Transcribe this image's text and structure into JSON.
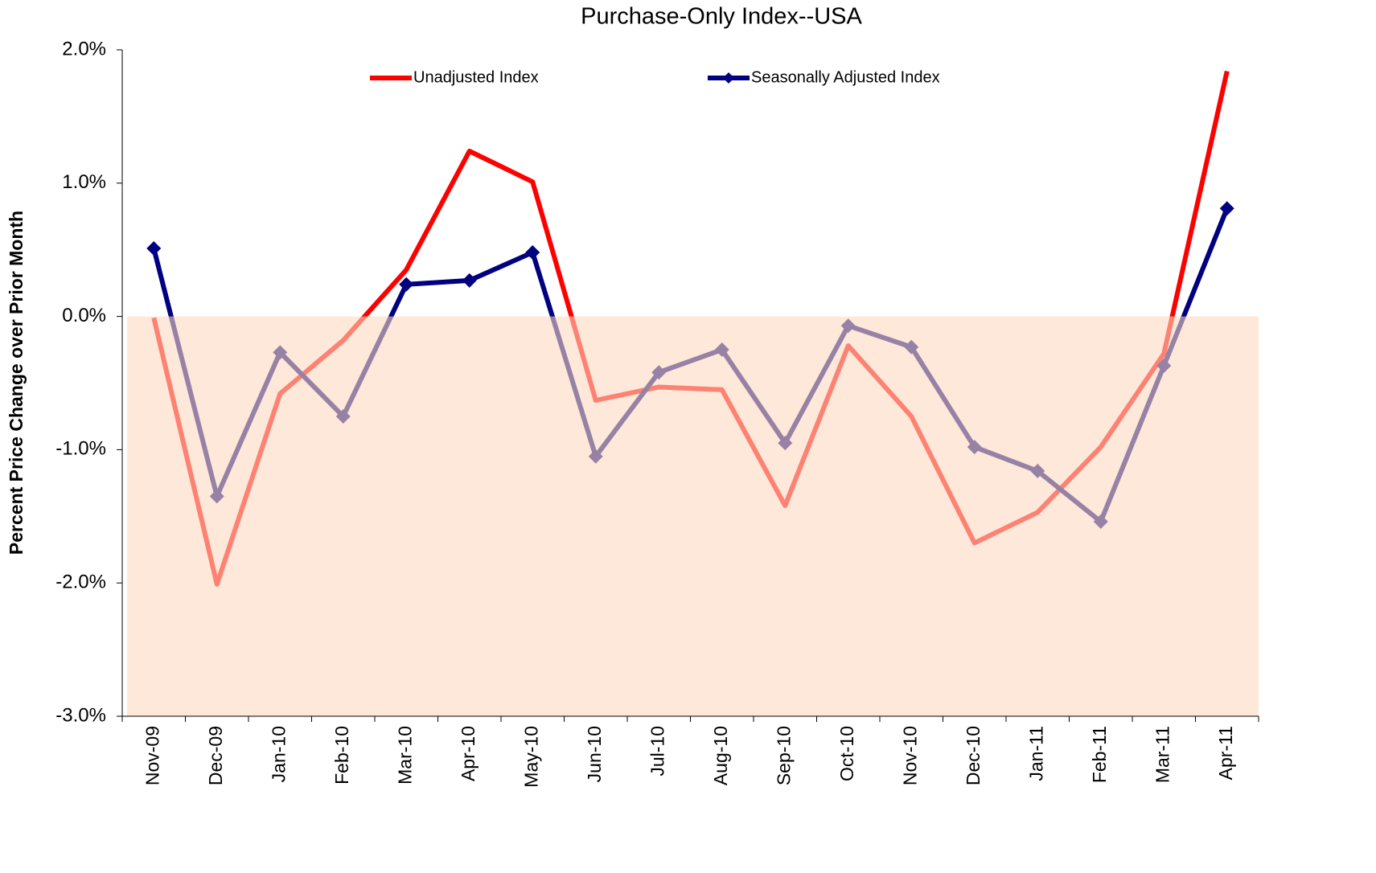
{
  "chart_data": {
    "type": "line",
    "title": "Purchase-Only Index--USA",
    "y_label": "Percent Price Change over Prior Month",
    "categories": [
      "Nov-09",
      "Dec-09",
      "Jan-10",
      "Feb-10",
      "Mar-10",
      "Apr-10",
      "May-10",
      "Jun-10",
      "Jul-10",
      "Aug-10",
      "Sep-10",
      "Oct-10",
      "Nov-10",
      "Dec-10",
      "Jan-11",
      "Feb-11",
      "Mar-11",
      "Apr-11"
    ],
    "series": [
      {
        "name": "Unadjusted Index",
        "color": "#ff0000",
        "marker": false,
        "values": [
          -0.01,
          -2.01,
          -0.58,
          -0.18,
          0.35,
          1.24,
          1.01,
          -0.63,
          -0.53,
          -0.55,
          -1.42,
          -0.22,
          -0.75,
          -1.7,
          -1.47,
          -0.98,
          -0.28,
          1.84
        ]
      },
      {
        "name": "Seasonally Adjusted Index",
        "color": "#000080",
        "marker": true,
        "values": [
          0.51,
          -1.35,
          -0.27,
          -0.75,
          0.24,
          0.27,
          0.48,
          -1.05,
          -0.42,
          -0.25,
          -0.95,
          -0.07,
          -0.23,
          -0.98,
          -1.16,
          -1.54,
          -0.37,
          0.81
        ]
      }
    ],
    "ylim": [
      -3,
      2
    ],
    "yticks": [
      {
        "value": -3,
        "label": "-3.0%"
      },
      {
        "value": -2,
        "label": "-2.0%"
      },
      {
        "value": -1,
        "label": "-1.0%"
      },
      {
        "value": 0,
        "label": "0.0%"
      },
      {
        "value": 1,
        "label": "1.0%"
      },
      {
        "value": 2,
        "label": "2.0%"
      }
    ],
    "grid": false,
    "legend": "top"
  }
}
